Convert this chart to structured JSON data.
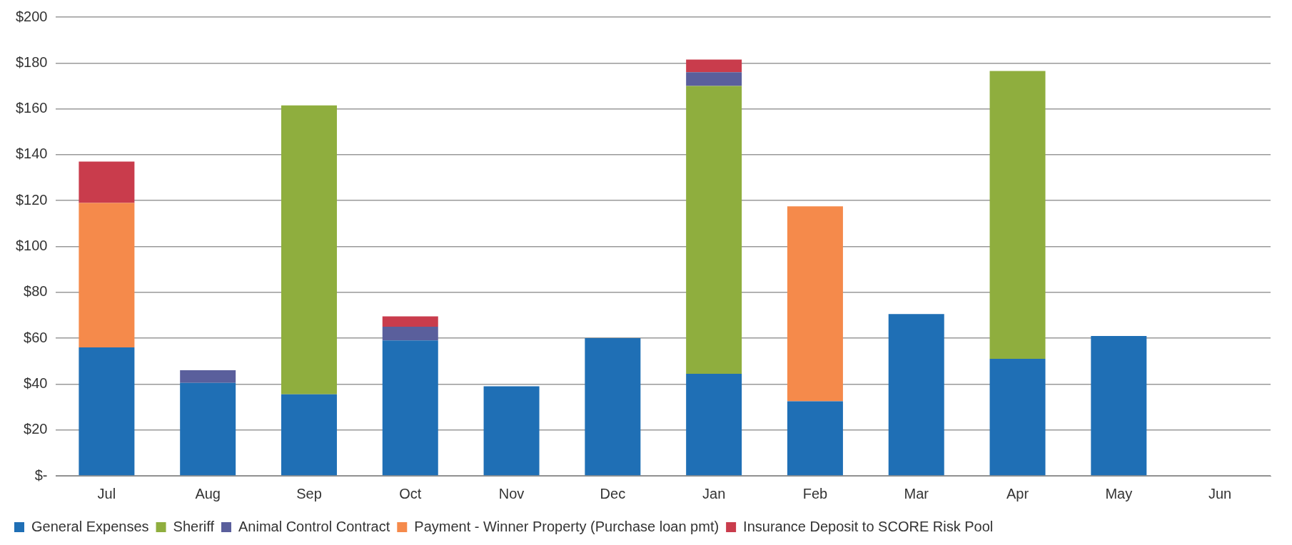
{
  "chart_data": {
    "type": "bar",
    "stacked": true,
    "categories": [
      "Jul",
      "Aug",
      "Sep",
      "Oct",
      "Nov",
      "Dec",
      "Jan",
      "Feb",
      "Mar",
      "Apr",
      "May",
      "Jun"
    ],
    "series": [
      {
        "name": "General Expenses",
        "color": "#1f6fb5",
        "values": [
          56,
          40.5,
          35.5,
          59,
          39,
          60,
          44.5,
          32.5,
          70.5,
          51,
          61,
          null
        ]
      },
      {
        "name": "Sheriff",
        "color": "#8fae3e",
        "values": [
          null,
          null,
          126,
          null,
          null,
          null,
          125.5,
          null,
          null,
          125.5,
          null,
          null
        ]
      },
      {
        "name": "Animal Control Contract",
        "color": "#5a5f9c",
        "values": [
          null,
          5.5,
          null,
          6,
          null,
          null,
          6,
          null,
          null,
          null,
          null,
          null
        ]
      },
      {
        "name": "Payment - Winner Property (Purchase loan pmt)",
        "color": "#f58a4b",
        "values": [
          63,
          null,
          null,
          null,
          null,
          null,
          null,
          85,
          null,
          null,
          null,
          null
        ]
      },
      {
        "name": "Insurance Deposit to SCORE Risk Pool",
        "color": "#c93c4c",
        "values": [
          18,
          null,
          null,
          4.5,
          null,
          null,
          5.5,
          null,
          null,
          null,
          null,
          null
        ]
      }
    ],
    "ylim": [
      0,
      200
    ],
    "yticks": [
      {
        "value": 0,
        "label": "$-"
      },
      {
        "value": 20,
        "label": "$20"
      },
      {
        "value": 40,
        "label": "$40"
      },
      {
        "value": 60,
        "label": "$60"
      },
      {
        "value": 80,
        "label": "$80"
      },
      {
        "value": 100,
        "label": "$100"
      },
      {
        "value": 120,
        "label": "$120"
      },
      {
        "value": 140,
        "label": "$140"
      },
      {
        "value": 160,
        "label": "$160"
      },
      {
        "value": 180,
        "label": "$180"
      },
      {
        "value": 200,
        "label": "$200"
      }
    ],
    "grid": "y",
    "legend": "bottom"
  }
}
